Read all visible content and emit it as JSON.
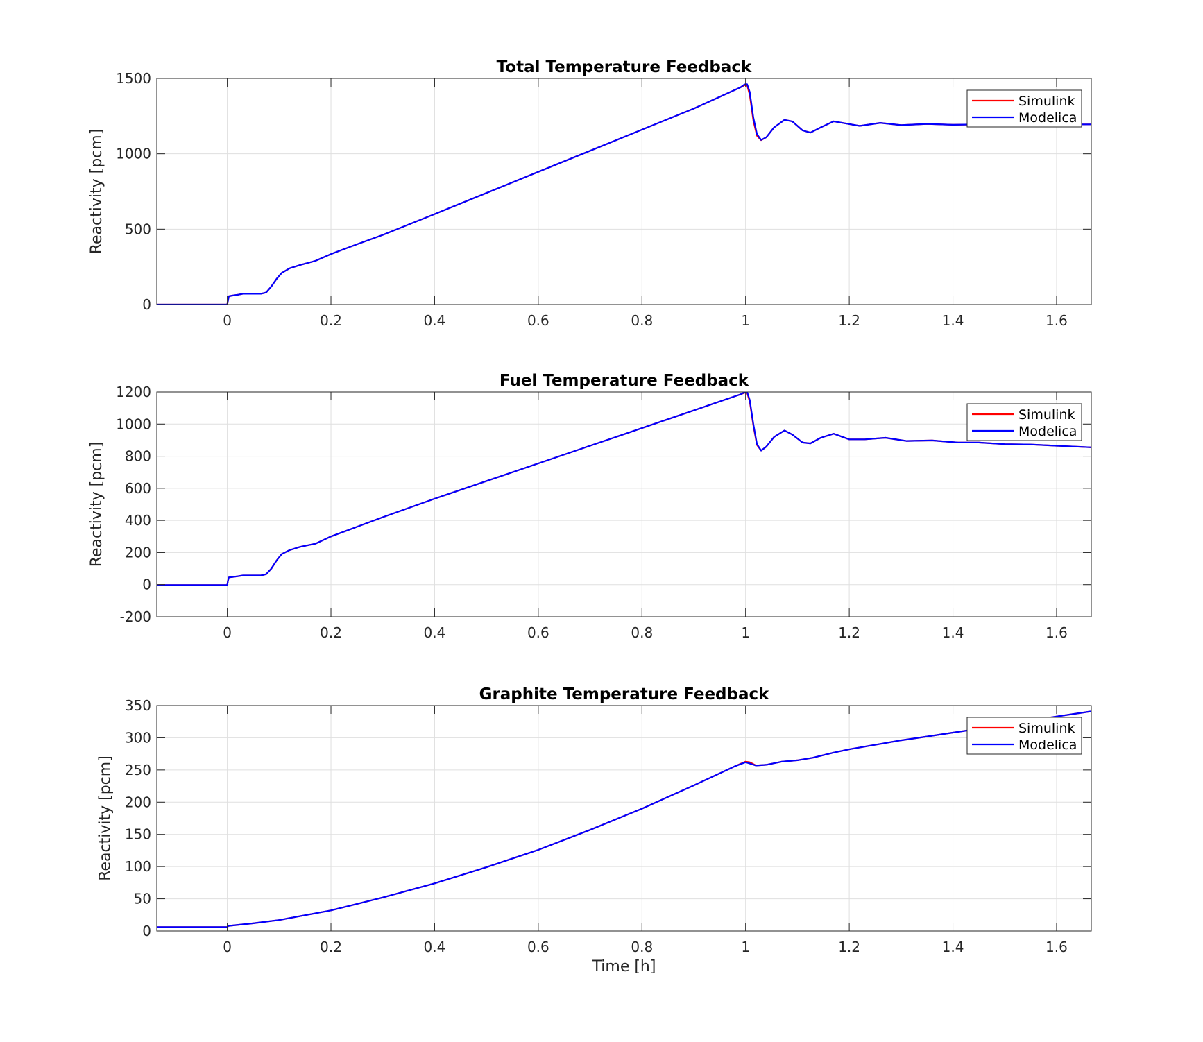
{
  "colors": {
    "simulink": "#ff0000",
    "modelica": "#0000ff",
    "grid": "#dfdfdf",
    "axis": "#262626",
    "background": "#ffffff"
  },
  "legend": {
    "placement": "top-right",
    "entries": [
      "Simulink",
      "Modelica"
    ]
  },
  "chart_data": [
    {
      "type": "line",
      "title": "Total Temperature Feedback",
      "xlabel": "",
      "ylabel": "Reactivity [pcm]",
      "xlim": [
        -0.136,
        1.667
      ],
      "ylim": [
        0,
        1500
      ],
      "xticks": [
        0,
        0.2,
        0.4,
        0.6,
        0.8,
        1,
        1.2,
        1.4,
        1.6
      ],
      "xticklabels": [
        "0",
        "0.2",
        "0.4",
        "0.6",
        "0.8",
        "1",
        "1.2",
        "1.4",
        "1.6"
      ],
      "yticks": [
        0,
        500,
        1000,
        1500
      ],
      "yticklabels": [
        "0",
        "500",
        "1000",
        "1500"
      ],
      "grid": true,
      "legend": "top-right",
      "series": [
        {
          "name": "Simulink",
          "x": [
            -0.136,
            0,
            0.001,
            0.003,
            0.01,
            0.02,
            0.03,
            0.05,
            0.065,
            0.075,
            0.085,
            0.095,
            0.105,
            0.12,
            0.14,
            0.17,
            0.2,
            0.25,
            0.3,
            0.4,
            0.5,
            0.6,
            0.7,
            0.8,
            0.9,
            0.99,
            0.998,
            1.003,
            1.008,
            1.015,
            1.022,
            1.03,
            1.04,
            1.055,
            1.075,
            1.09,
            1.11,
            1.125,
            1.145,
            1.17,
            1.195,
            1.22,
            1.26,
            1.3,
            1.35,
            1.4,
            1.45,
            1.5,
            1.667
          ],
          "y": [
            0,
            0,
            20,
            55,
            60,
            65,
            72,
            72,
            72,
            80,
            120,
            170,
            210,
            240,
            262,
            290,
            335,
            400,
            462,
            600,
            740,
            880,
            1020,
            1160,
            1300,
            1440,
            1455,
            1455,
            1390,
            1220,
            1120,
            1090,
            1110,
            1175,
            1225,
            1215,
            1155,
            1140,
            1175,
            1215,
            1200,
            1185,
            1205,
            1190,
            1198,
            1192,
            1195,
            1193,
            1195
          ]
        },
        {
          "name": "Modelica",
          "x": [
            -0.136,
            0,
            0.001,
            0.003,
            0.01,
            0.02,
            0.03,
            0.05,
            0.065,
            0.075,
            0.085,
            0.095,
            0.105,
            0.12,
            0.14,
            0.17,
            0.2,
            0.25,
            0.3,
            0.4,
            0.5,
            0.6,
            0.7,
            0.8,
            0.9,
            0.99,
            0.998,
            1.003,
            1.008,
            1.015,
            1.022,
            1.03,
            1.04,
            1.055,
            1.075,
            1.09,
            1.11,
            1.125,
            1.145,
            1.17,
            1.195,
            1.22,
            1.26,
            1.3,
            1.35,
            1.4,
            1.45,
            1.5,
            1.667
          ],
          "y": [
            0,
            0,
            20,
            55,
            60,
            65,
            72,
            72,
            72,
            80,
            120,
            170,
            210,
            240,
            262,
            290,
            335,
            400,
            462,
            600,
            740,
            880,
            1020,
            1160,
            1300,
            1440,
            1460,
            1462,
            1410,
            1240,
            1130,
            1092,
            1110,
            1175,
            1225,
            1215,
            1155,
            1140,
            1175,
            1215,
            1200,
            1185,
            1205,
            1190,
            1198,
            1192,
            1195,
            1193,
            1195
          ]
        }
      ]
    },
    {
      "type": "line",
      "title": "Fuel Temperature Feedback",
      "xlabel": "",
      "ylabel": "Reactivity [pcm]",
      "xlim": [
        -0.136,
        1.667
      ],
      "ylim": [
        -200,
        1200
      ],
      "xticks": [
        0,
        0.2,
        0.4,
        0.6,
        0.8,
        1,
        1.2,
        1.4,
        1.6
      ],
      "xticklabels": [
        "0",
        "0.2",
        "0.4",
        "0.6",
        "0.8",
        "1",
        "1.2",
        "1.4",
        "1.6"
      ],
      "yticks": [
        -200,
        0,
        200,
        400,
        600,
        800,
        1000,
        1200
      ],
      "yticklabels": [
        "-200",
        "0",
        "200",
        "400",
        "600",
        "800",
        "1000",
        "1200"
      ],
      "grid": true,
      "legend": "top-right",
      "series": [
        {
          "name": "Simulink",
          "x": [
            -0.136,
            0,
            0.001,
            0.003,
            0.01,
            0.02,
            0.03,
            0.05,
            0.065,
            0.075,
            0.085,
            0.095,
            0.105,
            0.12,
            0.14,
            0.17,
            0.2,
            0.25,
            0.3,
            0.4,
            0.5,
            0.6,
            0.7,
            0.8,
            0.9,
            0.99,
            0.998,
            1.003,
            1.008,
            1.015,
            1.022,
            1.03,
            1.04,
            1.055,
            1.075,
            1.09,
            1.11,
            1.125,
            1.145,
            1.17,
            1.2,
            1.23,
            1.27,
            1.31,
            1.36,
            1.41,
            1.45,
            1.5,
            1.55,
            1.6,
            1.667
          ],
          "y": [
            -3,
            -3,
            20,
            45,
            48,
            52,
            57,
            57,
            57,
            65,
            100,
            150,
            190,
            215,
            235,
            255,
            300,
            360,
            420,
            535,
            645,
            755,
            865,
            975,
            1085,
            1185,
            1195,
            1195,
            1140,
            990,
            870,
            835,
            860,
            920,
            960,
            935,
            885,
            880,
            915,
            940,
            905,
            905,
            915,
            895,
            898,
            885,
            885,
            875,
            873,
            865,
            855
          ]
        },
        {
          "name": "Modelica",
          "x": [
            -0.136,
            0,
            0.001,
            0.003,
            0.01,
            0.02,
            0.03,
            0.05,
            0.065,
            0.075,
            0.085,
            0.095,
            0.105,
            0.12,
            0.14,
            0.17,
            0.2,
            0.25,
            0.3,
            0.4,
            0.5,
            0.6,
            0.7,
            0.8,
            0.9,
            0.99,
            0.998,
            1.003,
            1.008,
            1.015,
            1.022,
            1.03,
            1.04,
            1.055,
            1.075,
            1.09,
            1.11,
            1.125,
            1.145,
            1.17,
            1.2,
            1.23,
            1.27,
            1.31,
            1.36,
            1.41,
            1.45,
            1.5,
            1.55,
            1.6,
            1.667
          ],
          "y": [
            -3,
            -3,
            20,
            45,
            48,
            52,
            57,
            57,
            57,
            65,
            100,
            150,
            190,
            215,
            235,
            255,
            300,
            360,
            420,
            535,
            645,
            755,
            865,
            975,
            1085,
            1185,
            1198,
            1200,
            1150,
            1000,
            875,
            835,
            860,
            920,
            960,
            935,
            885,
            880,
            915,
            940,
            905,
            905,
            915,
            895,
            898,
            885,
            885,
            875,
            873,
            865,
            855
          ]
        }
      ]
    },
    {
      "type": "line",
      "title": "Graphite Temperature Feedback",
      "xlabel": "Time [h]",
      "ylabel": "Reactivity [pcm]",
      "xlim": [
        -0.136,
        1.667
      ],
      "ylim": [
        0,
        350
      ],
      "xticks": [
        0,
        0.2,
        0.4,
        0.6,
        0.8,
        1,
        1.2,
        1.4,
        1.6
      ],
      "xticklabels": [
        "0",
        "0.2",
        "0.4",
        "0.6",
        "0.8",
        "1",
        "1.2",
        "1.4",
        "1.6"
      ],
      "yticks": [
        0,
        50,
        100,
        150,
        200,
        250,
        300,
        350
      ],
      "yticklabels": [
        "0",
        "50",
        "100",
        "150",
        "200",
        "250",
        "300",
        "350"
      ],
      "grid": true,
      "legend": "top-right",
      "series": [
        {
          "name": "Simulink",
          "x": [
            -0.136,
            0,
            0.002,
            0.05,
            0.1,
            0.2,
            0.3,
            0.4,
            0.5,
            0.6,
            0.7,
            0.8,
            0.9,
            0.98,
            1.0,
            1.008,
            1.02,
            1.04,
            1.07,
            1.1,
            1.13,
            1.17,
            1.2,
            1.25,
            1.3,
            1.35,
            1.4,
            1.45,
            1.5,
            1.55,
            1.6,
            1.667
          ],
          "y": [
            6,
            6,
            8,
            12,
            17,
            32,
            52,
            74,
            99,
            126,
            157,
            190,
            226,
            256,
            263,
            262,
            257,
            258,
            263,
            265,
            269,
            277,
            282,
            289,
            296,
            302,
            308,
            314,
            320,
            327,
            333,
            341
          ]
        },
        {
          "name": "Modelica",
          "x": [
            -0.136,
            0,
            0.002,
            0.05,
            0.1,
            0.2,
            0.3,
            0.4,
            0.5,
            0.6,
            0.7,
            0.8,
            0.9,
            0.98,
            1.0,
            1.008,
            1.02,
            1.04,
            1.07,
            1.1,
            1.13,
            1.17,
            1.2,
            1.25,
            1.3,
            1.35,
            1.4,
            1.45,
            1.5,
            1.55,
            1.6,
            1.667
          ],
          "y": [
            6,
            6,
            8,
            12,
            17,
            32,
            52,
            74,
            99,
            126,
            157,
            190,
            226,
            256,
            262,
            260,
            257,
            258,
            263,
            265,
            269,
            277,
            282,
            289,
            296,
            302,
            308,
            314,
            320,
            327,
            333,
            341
          ]
        }
      ]
    }
  ]
}
